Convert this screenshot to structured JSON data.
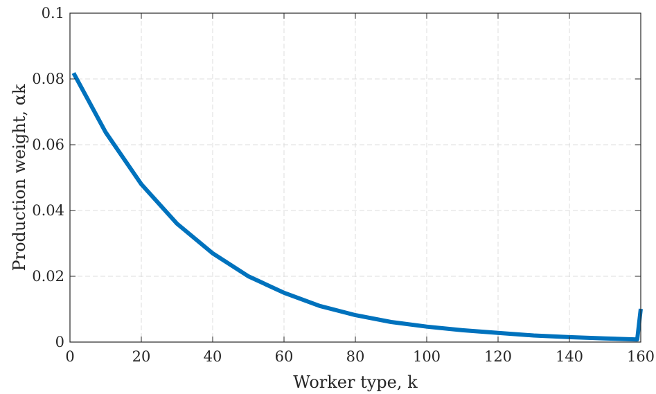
{
  "chart_data": {
    "type": "line",
    "title": "",
    "xlabel": "Worker type, k",
    "ylabel": "Production weight, αk",
    "xlim": [
      0,
      160
    ],
    "ylim": [
      0,
      0.1
    ],
    "grid": true,
    "legend": false,
    "x_ticks": [
      "0",
      "20",
      "40",
      "60",
      "80",
      "100",
      "120",
      "140",
      "160"
    ],
    "y_ticks": [
      "0",
      "0.02",
      "0.04",
      "0.06",
      "0.08",
      "0.1"
    ],
    "series": [
      {
        "color": "#0072BD",
        "x": [
          1,
          10,
          20,
          30,
          40,
          50,
          60,
          70,
          80,
          90,
          100,
          110,
          120,
          130,
          140,
          150,
          159,
          160
        ],
        "y": [
          0.0818,
          0.0638,
          0.048,
          0.036,
          0.027,
          0.02,
          0.015,
          0.011,
          0.0082,
          0.0061,
          0.0047,
          0.0036,
          0.0028,
          0.002,
          0.0015,
          0.0011,
          0.0008,
          0.0101
        ]
      }
    ]
  }
}
